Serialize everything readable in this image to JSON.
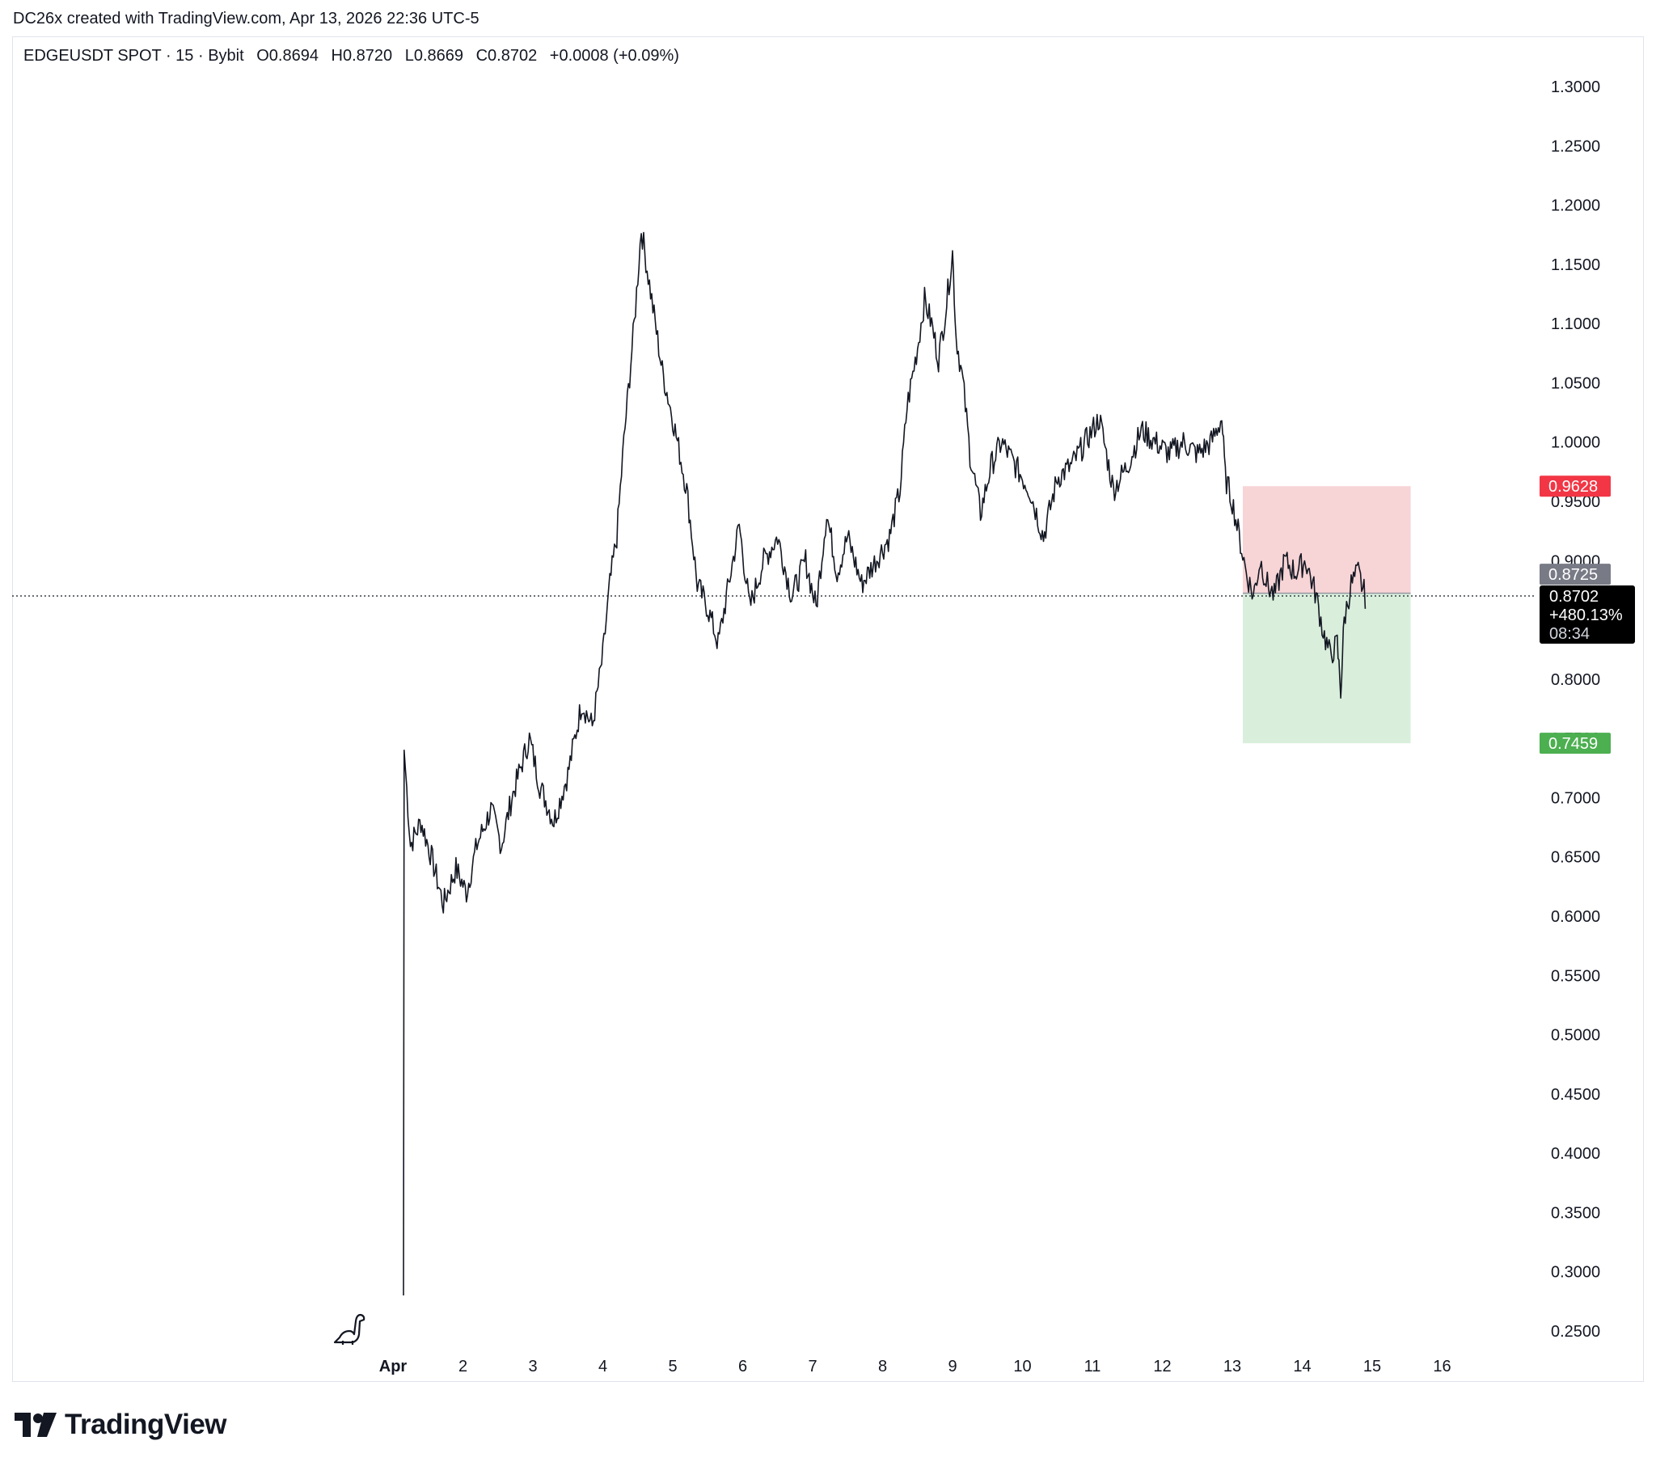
{
  "header": {
    "creator_line": "DC26x created with TradingView.com, Apr 13, 2026 22:36 UTC-5"
  },
  "legend": {
    "symbol": "EDGEUSDT SPOT · 15 · Bybit",
    "open": "O0.8694",
    "high": "H0.8720",
    "low": "L0.8669",
    "close": "C0.8702",
    "change": "+0.0008 (+0.09%)"
  },
  "labels": {
    "stop_price": "0.9628",
    "entry_price": "0.8725",
    "last_price": "0.8702",
    "last_change": "+480.13%",
    "countdown": "08:34",
    "target_price": "0.7459"
  },
  "colors": {
    "candle": "#131722",
    "stop_zone": "#f7d4d6",
    "target_zone": "#d9efdc",
    "stop_badge": "#f23645",
    "target_badge": "#4caf50",
    "entry_badge": "#787b86",
    "last_badge": "#000000"
  },
  "icons": {
    "bottom_left": "dinosaur-icon",
    "brand": "tradingview-logo-icon"
  },
  "brand": {
    "name": "TradingView"
  },
  "chart_data": {
    "type": "line",
    "title": "",
    "xlabel": "",
    "ylabel": "",
    "x_ticks": [
      "Apr",
      "2",
      "3",
      "4",
      "5",
      "6",
      "7",
      "8",
      "9",
      "10",
      "11",
      "12",
      "13",
      "14",
      "15",
      "16"
    ],
    "y_ticks": [
      "1.3000",
      "1.2500",
      "1.2000",
      "1.1500",
      "1.1000",
      "1.0500",
      "1.0000",
      "0.9500",
      "0.9000",
      "0.8500",
      "0.8000",
      "0.7500",
      "0.7000",
      "0.6500",
      "0.6000",
      "0.5500",
      "0.5000",
      "0.4500",
      "0.4000",
      "0.3500",
      "0.3000",
      "0.2500"
    ],
    "ylim": [
      0.24,
      1.34
    ],
    "x_range_days": [
      -0.68,
      16.2
    ],
    "series": [
      {
        "values": [
          [
            0.15,
            0.28
          ],
          [
            0.16,
            0.74
          ],
          [
            0.25,
            0.66
          ],
          [
            0.4,
            0.68
          ],
          [
            0.55,
            0.65
          ],
          [
            0.72,
            0.61
          ],
          [
            0.9,
            0.64
          ],
          [
            1.05,
            0.62
          ],
          [
            1.2,
            0.66
          ],
          [
            1.4,
            0.69
          ],
          [
            1.55,
            0.66
          ],
          [
            1.7,
            0.7
          ],
          [
            1.95,
            0.75
          ],
          [
            2.1,
            0.71
          ],
          [
            2.3,
            0.68
          ],
          [
            2.5,
            0.72
          ],
          [
            2.7,
            0.78
          ],
          [
            2.85,
            0.76
          ],
          [
            3.0,
            0.82
          ],
          [
            3.1,
            0.88
          ],
          [
            3.2,
            0.92
          ],
          [
            3.3,
            1.0
          ],
          [
            3.45,
            1.1
          ],
          [
            3.55,
            1.18
          ],
          [
            3.7,
            1.12
          ],
          [
            3.85,
            1.06
          ],
          [
            4.0,
            1.02
          ],
          [
            4.2,
            0.96
          ],
          [
            4.35,
            0.88
          ],
          [
            4.5,
            0.86
          ],
          [
            4.65,
            0.83
          ],
          [
            4.8,
            0.88
          ],
          [
            4.95,
            0.93
          ],
          [
            5.1,
            0.86
          ],
          [
            5.3,
            0.9
          ],
          [
            5.5,
            0.92
          ],
          [
            5.7,
            0.87
          ],
          [
            5.9,
            0.9
          ],
          [
            6.05,
            0.86
          ],
          [
            6.2,
            0.94
          ],
          [
            6.35,
            0.89
          ],
          [
            6.5,
            0.92
          ],
          [
            6.7,
            0.88
          ],
          [
            6.9,
            0.9
          ],
          [
            7.1,
            0.92
          ],
          [
            7.25,
            0.96
          ],
          [
            7.35,
            1.03
          ],
          [
            7.5,
            1.08
          ],
          [
            7.6,
            1.12
          ],
          [
            7.7,
            1.1
          ],
          [
            7.8,
            1.07
          ],
          [
            7.9,
            1.11
          ],
          [
            8.0,
            1.16
          ],
          [
            8.05,
            1.09
          ],
          [
            8.15,
            1.05
          ],
          [
            8.25,
            0.99
          ],
          [
            8.4,
            0.94
          ],
          [
            8.55,
            0.98
          ],
          [
            8.7,
            1.0
          ],
          [
            8.9,
            0.98
          ],
          [
            9.1,
            0.96
          ],
          [
            9.3,
            0.92
          ],
          [
            9.5,
            0.97
          ],
          [
            9.7,
            0.98
          ],
          [
            9.9,
            1.0
          ],
          [
            10.1,
            1.02
          ],
          [
            10.3,
            0.96
          ],
          [
            10.5,
            0.98
          ],
          [
            10.7,
            1.01
          ],
          [
            10.9,
            1.0
          ],
          [
            11.1,
            0.99
          ],
          [
            11.3,
            1.0
          ],
          [
            11.5,
            0.99
          ],
          [
            11.7,
            1.0
          ],
          [
            11.85,
            1.02
          ],
          [
            11.9,
            0.97
          ],
          [
            12.0,
            0.95
          ],
          [
            12.1,
            0.92
          ],
          [
            12.2,
            0.89
          ],
          [
            12.3,
            0.87
          ],
          [
            12.4,
            0.9
          ],
          [
            12.5,
            0.88
          ],
          [
            12.6,
            0.87
          ],
          [
            12.75,
            0.9
          ],
          [
            12.9,
            0.89
          ],
          [
            13.05,
            0.9
          ],
          [
            13.2,
            0.87
          ],
          [
            13.3,
            0.84
          ],
          [
            13.4,
            0.82
          ],
          [
            13.5,
            0.83
          ],
          [
            13.55,
            0.79
          ],
          [
            13.6,
            0.85
          ],
          [
            13.7,
            0.88
          ],
          [
            13.8,
            0.89
          ],
          [
            13.9,
            0.87
          ]
        ]
      }
    ],
    "position": {
      "entry": 0.8725,
      "stop": 0.9628,
      "target": 0.7459,
      "x_start_days": 12.15,
      "x_end_days": 14.55
    },
    "last_price": 0.8702,
    "grid": false
  }
}
